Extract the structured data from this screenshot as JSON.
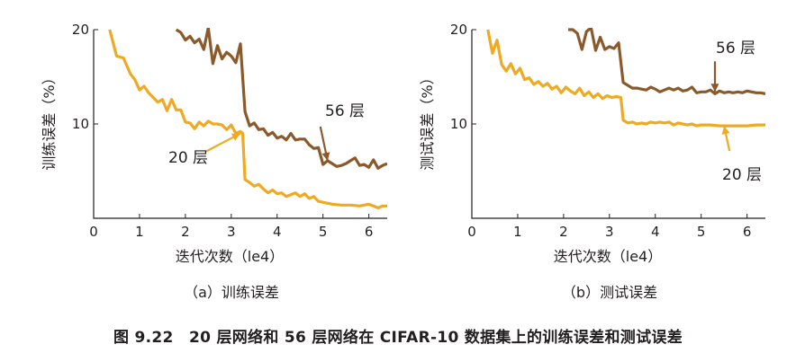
{
  "caption": "图 9.22　20 层网络和 56 层网络在 CIFAR-10 数据集上的训练误差和测试误差",
  "chart_data": [
    {
      "type": "line",
      "subtitle": "（a）训练误差",
      "xlabel": "迭代次数（le4）",
      "ylabel": "训练误差（%）",
      "xlim": [
        0,
        6.4
      ],
      "ylim": [
        0,
        20
      ],
      "xticks": [
        "0",
        "1",
        "2",
        "3",
        "4",
        "5",
        "6"
      ],
      "yticks": [
        "10",
        "20"
      ],
      "grid": false,
      "series": [
        {
          "name": "56 层",
          "color": "#8b5a2b",
          "x": [
            1.8,
            1.9,
            2.0,
            2.1,
            2.2,
            2.3,
            2.4,
            2.5,
            2.6,
            2.7,
            2.8,
            2.9,
            3.0,
            3.1,
            3.2,
            3.3,
            3.4,
            3.5,
            3.6,
            3.7,
            3.8,
            3.9,
            4.0,
            4.1,
            4.2,
            4.3,
            4.4,
            4.5,
            4.6,
            4.7,
            4.8,
            4.9,
            5.0,
            5.1,
            5.2,
            5.3,
            5.4,
            5.5,
            5.6,
            5.7,
            5.8,
            5.9,
            6.0,
            6.1,
            6.2,
            6.3,
            6.4
          ],
          "y": [
            20,
            19.7,
            18.9,
            19.3,
            18.6,
            19.0,
            17.9,
            20.2,
            16.4,
            18.3,
            16.9,
            17.6,
            17.2,
            16.5,
            18.5,
            11.3,
            9.8,
            10.1,
            9.4,
            9.5,
            8.8,
            9.1,
            8.5,
            8.7,
            8.3,
            9.0,
            8.3,
            8.4,
            8.4,
            7.8,
            7.4,
            7.5,
            5.7,
            6.1,
            5.8,
            5.5,
            5.6,
            5.8,
            6.1,
            6.4,
            5.6,
            5.7,
            5.4,
            6.2,
            5.3,
            5.6,
            5.8
          ]
        },
        {
          "name": "20 层",
          "color": "#eeaa22",
          "x": [
            0.35,
            0.5,
            0.65,
            0.8,
            0.9,
            1.0,
            1.1,
            1.2,
            1.3,
            1.4,
            1.5,
            1.6,
            1.7,
            1.8,
            1.9,
            2.0,
            2.1,
            2.2,
            2.3,
            2.4,
            2.5,
            2.6,
            2.7,
            2.8,
            2.9,
            3.0,
            3.1,
            3.2,
            3.25,
            3.3,
            3.4,
            3.5,
            3.6,
            3.7,
            3.8,
            3.9,
            4.0,
            4.1,
            4.2,
            4.3,
            4.4,
            4.5,
            4.6,
            4.7,
            4.8,
            4.9,
            5.0,
            5.2,
            5.4,
            5.6,
            5.8,
            6.0,
            6.2,
            6.3,
            6.4
          ],
          "y": [
            20,
            17.2,
            17.0,
            15.3,
            14.7,
            13.6,
            14.0,
            13.3,
            12.8,
            12.3,
            12.6,
            11.4,
            12.6,
            11.5,
            11.5,
            10.2,
            10.1,
            9.5,
            10.2,
            9.8,
            10.3,
            10.0,
            10.0,
            9.9,
            9.4,
            9.9,
            9.0,
            9.2,
            9.0,
            4.1,
            3.8,
            3.4,
            3.6,
            3.1,
            2.7,
            3.0,
            2.6,
            2.7,
            2.3,
            2.5,
            2.7,
            2.3,
            2.6,
            2.1,
            2.3,
            1.8,
            1.7,
            1.5,
            1.4,
            1.4,
            1.3,
            1.5,
            1.1,
            1.3,
            1.3
          ]
        }
      ],
      "annotations": [
        {
          "text": "56 层",
          "x": 5.1,
          "y": 6.1,
          "color": "#8b5a2b"
        },
        {
          "text": "20 层",
          "x": 3.2,
          "y": 9.0,
          "color": "#eeaa22"
        }
      ]
    },
    {
      "type": "line",
      "subtitle": "（b）测试误差",
      "xlabel": "迭代次数（le4）",
      "ylabel": "测试误差（%）",
      "xlim": [
        0,
        6.4
      ],
      "ylim": [
        0,
        20
      ],
      "xticks": [
        "0",
        "1",
        "2",
        "3",
        "4",
        "5",
        "6"
      ],
      "yticks": [
        "10",
        "20"
      ],
      "grid": false,
      "series": [
        {
          "name": "56 层",
          "color": "#8b5a2b",
          "x": [
            2.1,
            2.2,
            2.3,
            2.4,
            2.5,
            2.6,
            2.7,
            2.8,
            2.9,
            3.0,
            3.1,
            3.2,
            3.3,
            3.4,
            3.5,
            3.6,
            3.7,
            3.8,
            3.9,
            4.0,
            4.1,
            4.2,
            4.3,
            4.4,
            4.5,
            4.6,
            4.7,
            4.8,
            4.9,
            5.0,
            5.1,
            5.2,
            5.3,
            5.4,
            5.5,
            5.6,
            5.7,
            5.8,
            5.9,
            6.0,
            6.1,
            6.2,
            6.3,
            6.4
          ],
          "y": [
            20,
            20.0,
            19.6,
            17.9,
            19.8,
            20.2,
            17.8,
            19.2,
            17.9,
            18.2,
            18.0,
            18.6,
            14.4,
            14.1,
            13.8,
            13.8,
            13.7,
            13.6,
            13.9,
            13.7,
            13.4,
            13.6,
            13.8,
            13.6,
            13.8,
            13.5,
            13.6,
            13.9,
            13.3,
            13.4,
            13.4,
            13.6,
            13.2,
            13.5,
            13.3,
            13.4,
            13.3,
            13.4,
            13.3,
            13.5,
            13.4,
            13.3,
            13.3,
            13.2
          ]
        },
        {
          "name": "20 层",
          "color": "#eeaa22",
          "x": [
            0.35,
            0.45,
            0.55,
            0.65,
            0.75,
            0.85,
            0.95,
            1.05,
            1.15,
            1.25,
            1.35,
            1.45,
            1.55,
            1.65,
            1.75,
            1.85,
            1.95,
            2.05,
            2.15,
            2.25,
            2.35,
            2.45,
            2.55,
            2.65,
            2.75,
            2.85,
            2.95,
            3.05,
            3.15,
            3.25,
            3.3,
            3.4,
            3.5,
            3.6,
            3.7,
            3.8,
            3.9,
            4.0,
            4.1,
            4.2,
            4.3,
            4.4,
            4.5,
            4.6,
            4.7,
            4.8,
            4.9,
            5.0,
            5.2,
            5.4,
            5.6,
            5.8,
            6.0,
            6.2,
            6.4
          ],
          "y": [
            20,
            17.5,
            18.9,
            16.3,
            15.6,
            16.4,
            15.3,
            15.9,
            14.7,
            14.9,
            14.2,
            14.5,
            14.0,
            14.3,
            13.7,
            14.0,
            13.3,
            13.9,
            13.5,
            13.2,
            13.8,
            13.0,
            13.4,
            12.8,
            13.2,
            12.7,
            13.0,
            12.8,
            12.9,
            12.8,
            10.4,
            10.1,
            10.2,
            10.0,
            10.1,
            10.0,
            10.2,
            10.1,
            10.2,
            10.1,
            10.2,
            9.9,
            10.1,
            10.0,
            9.9,
            10.0,
            9.8,
            9.9,
            9.9,
            9.8,
            9.8,
            9.8,
            9.8,
            9.9,
            9.9
          ]
        }
      ],
      "annotations": [
        {
          "text": "56 层",
          "x": 5.3,
          "y": 13.4,
          "color": "#8b5a2b"
        },
        {
          "text": "20 层",
          "x": 5.5,
          "y": 9.8,
          "color": "#eeaa22"
        }
      ]
    }
  ]
}
